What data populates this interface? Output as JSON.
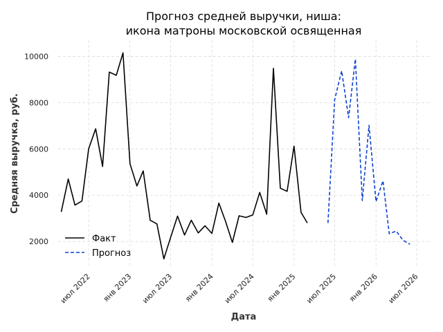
{
  "chart_data": {
    "type": "line",
    "title_line1": "Прогноз средней выручки, ниша:",
    "title_line2": "икона матроны московской освященная",
    "xlabel": "Дата",
    "ylabel": "Средняя выручка, руб.",
    "ylim": [
      900,
      10700
    ],
    "yticks": [
      2000,
      4000,
      6000,
      8000,
      10000
    ],
    "ytick_labels": [
      "2000",
      "4000",
      "6000",
      "8000",
      "10000"
    ],
    "xlim": [
      "2022-02-15",
      "2026-09-01"
    ],
    "xticks": [
      "2022-07-01",
      "2023-01-01",
      "2023-07-01",
      "2024-01-01",
      "2024-07-01",
      "2025-01-01",
      "2025-07-01",
      "2026-01-01",
      "2026-07-01"
    ],
    "xtick_labels": [
      "июл 2022",
      "янв 2023",
      "июл 2023",
      "янв 2024",
      "июл 2024",
      "янв 2025",
      "июл 2025",
      "янв 2026",
      "июл 2026"
    ],
    "grid": true,
    "legend_position": "lower-left",
    "series": [
      {
        "name": "Факт",
        "color": "#000000",
        "style": "solid",
        "x": [
          "2022-03-01",
          "2022-04-01",
          "2022-05-01",
          "2022-06-01",
          "2022-07-01",
          "2022-08-01",
          "2022-09-01",
          "2022-10-01",
          "2022-11-01",
          "2022-12-01",
          "2023-01-01",
          "2023-02-01",
          "2023-03-01",
          "2023-04-01",
          "2023-05-01",
          "2023-06-01",
          "2023-07-01",
          "2023-08-01",
          "2023-09-01",
          "2023-10-01",
          "2023-11-01",
          "2023-12-01",
          "2024-01-01",
          "2024-02-01",
          "2024-03-01",
          "2024-04-01",
          "2024-05-01",
          "2024-06-01",
          "2024-07-01",
          "2024-08-01",
          "2024-09-01",
          "2024-10-01",
          "2024-11-01",
          "2024-12-01",
          "2025-01-01",
          "2025-02-01",
          "2025-03-01",
          "2025-04-01",
          "2025-05-01",
          "2025-06-01"
        ],
        "values": [
          3280,
          4700,
          3570,
          3750,
          6010,
          6870,
          5240,
          9320,
          9180,
          10150,
          5360,
          4400,
          5050,
          2920,
          2760,
          1250,
          2180,
          3100,
          2280,
          2920,
          2370,
          2680,
          2350,
          3660,
          2890,
          1960,
          3110,
          3040,
          3150,
          4120,
          3180,
          9480,
          4300,
          4170,
          6120,
          3260,
          2800,
          null,
          null,
          null
        ]
      },
      {
        "name": "Прогноз",
        "color": "#0b3fd1",
        "style": "dashed",
        "x": [
          "2025-06-01",
          "2025-07-01",
          "2025-08-01",
          "2025-09-01",
          "2025-10-01",
          "2025-11-01",
          "2025-12-01",
          "2026-01-01",
          "2026-02-01",
          "2026-03-01",
          "2026-04-01",
          "2026-05-01",
          "2026-06-01",
          "2026-07-01"
        ],
        "values": [
          2800,
          8130,
          9370,
          7350,
          9880,
          3770,
          7020,
          3730,
          4620,
          2340,
          2450,
          2060,
          1880,
          null
        ]
      }
    ]
  }
}
